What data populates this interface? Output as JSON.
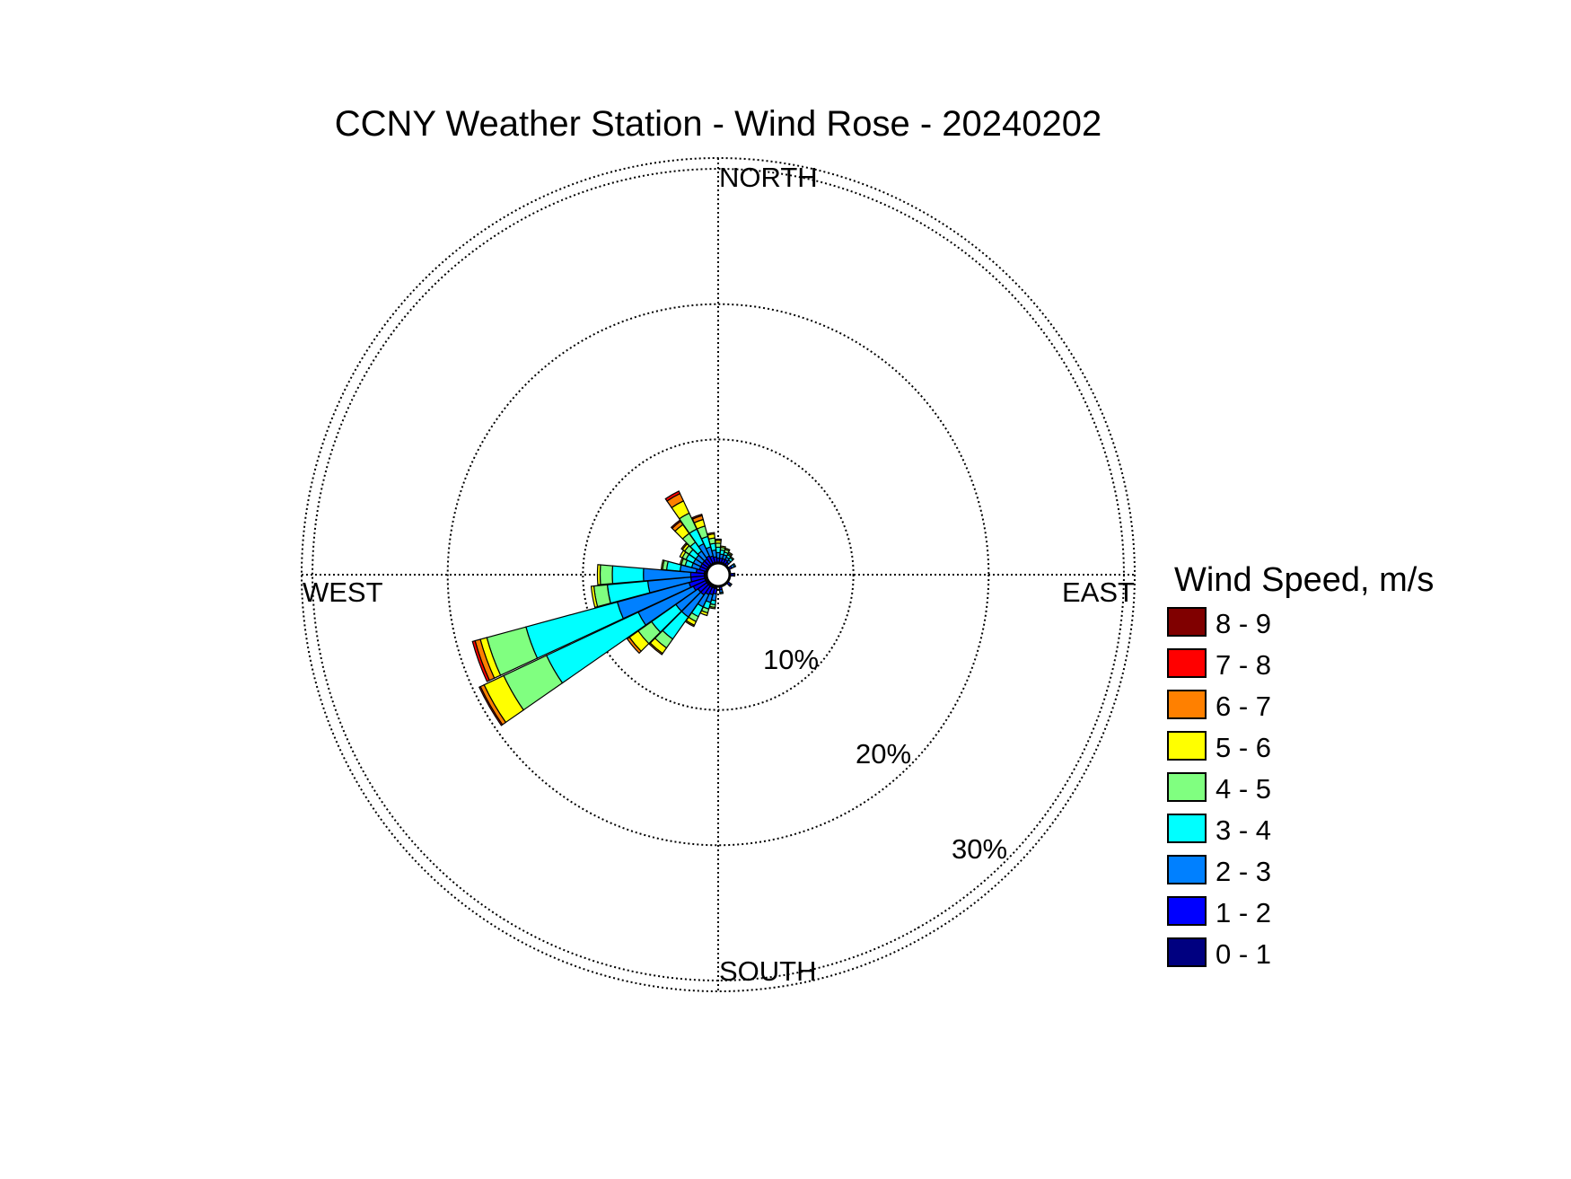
{
  "chart_data": {
    "type": "wind_rose",
    "title": "CCNY Weather Station - Wind Rose - 20240202",
    "direction_labels": {
      "north": "NORTH",
      "east": "EAST",
      "south": "SOUTH",
      "west": "WEST"
    },
    "rings": [
      {
        "value": 10,
        "label": "10%"
      },
      {
        "value": 20,
        "label": "20%"
      },
      {
        "value": 30,
        "label": "30%"
      }
    ],
    "r_max_percent": 30.8,
    "grid": true,
    "legend": {
      "title": "Wind Speed, m/s",
      "placement": "right",
      "items": [
        {
          "label": "8 - 9",
          "color": "#800000"
        },
        {
          "label": "7 - 8",
          "color": "#ff0000"
        },
        {
          "label": "6 - 7",
          "color": "#ff8000"
        },
        {
          "label": "5 - 6",
          "color": "#ffff00"
        },
        {
          "label": "4 - 5",
          "color": "#80ff80"
        },
        {
          "label": "3 - 4",
          "color": "#00ffff"
        },
        {
          "label": "2 - 3",
          "color": "#0080ff"
        },
        {
          "label": "1 - 2",
          "color": "#0000ff"
        },
        {
          "label": "0 - 1",
          "color": "#000080"
        }
      ]
    },
    "speed_bins": [
      "0 - 1",
      "1 - 2",
      "2 - 3",
      "3 - 4",
      "4 - 5",
      "5 - 6",
      "6 - 7",
      "7 - 8",
      "8 - 9"
    ],
    "bin_colors": [
      "#000080",
      "#0000ff",
      "#0080ff",
      "#00ffff",
      "#80ff80",
      "#ffff00",
      "#ff8000",
      "#ff0000",
      "#800000"
    ],
    "sectors_note": "direction in degrees (from), cumulative frequency in percent per speed bin (0-1 first)",
    "sectors": [
      {
        "dir": 0,
        "values": [
          0.2,
          0.3,
          0.4,
          0.4,
          0.3,
          0.2,
          0.1,
          0.0,
          0.0
        ]
      },
      {
        "dir": 10,
        "values": [
          0.2,
          0.3,
          0.3,
          0.3,
          0.2,
          0.1,
          0.0,
          0.0,
          0.0
        ]
      },
      {
        "dir": 20,
        "values": [
          0.2,
          0.3,
          0.3,
          0.2,
          0.2,
          0.1,
          0.0,
          0.0,
          0.0
        ]
      },
      {
        "dir": 30,
        "values": [
          0.2,
          0.3,
          0.2,
          0.2,
          0.1,
          0.1,
          0.0,
          0.0,
          0.0
        ]
      },
      {
        "dir": 40,
        "values": [
          0.2,
          0.2,
          0.2,
          0.2,
          0.1,
          0.0,
          0.0,
          0.0,
          0.0
        ]
      },
      {
        "dir": 60,
        "values": [
          0.2,
          0.2,
          0.2,
          0.1,
          0.0,
          0.0,
          0.0,
          0.0,
          0.0
        ]
      },
      {
        "dir": 90,
        "values": [
          0.2,
          0.2,
          0.1,
          0.0,
          0.0,
          0.0,
          0.0,
          0.0,
          0.0
        ]
      },
      {
        "dir": 130,
        "values": [
          0.2,
          0.2,
          0.1,
          0.0,
          0.0,
          0.0,
          0.0,
          0.0,
          0.0
        ]
      },
      {
        "dir": 170,
        "values": [
          0.2,
          0.2,
          0.2,
          0.1,
          0.0,
          0.0,
          0.0,
          0.0,
          0.0
        ]
      },
      {
        "dir": 190,
        "values": [
          0.3,
          0.4,
          0.5,
          0.3,
          0.2,
          0.1,
          0.0,
          0.0,
          0.0
        ]
      },
      {
        "dir": 200,
        "values": [
          0.3,
          0.5,
          0.6,
          0.5,
          0.3,
          0.2,
          0.0,
          0.0,
          0.0
        ]
      },
      {
        "dir": 210,
        "values": [
          0.3,
          0.6,
          1.0,
          0.8,
          0.4,
          0.3,
          0.1,
          0.0,
          0.0
        ]
      },
      {
        "dir": 220,
        "values": [
          0.3,
          0.8,
          2.0,
          2.0,
          0.8,
          0.5,
          0.1,
          0.0,
          0.0
        ]
      },
      {
        "dir": 230,
        "values": [
          0.3,
          0.8,
          2.0,
          2.2,
          1.2,
          0.8,
          0.2,
          0.0,
          0.0
        ]
      },
      {
        "dir": 240,
        "values": [
          0.3,
          1.0,
          4.5,
          7.5,
          3.5,
          1.6,
          0.3,
          0.1,
          0.0
        ]
      },
      {
        "dir": 250,
        "values": [
          0.3,
          1.2,
          5.5,
          7.0,
          3.0,
          0.5,
          0.4,
          0.2,
          0.0
        ]
      },
      {
        "dir": 260,
        "values": [
          0.3,
          1.0,
          3.2,
          3.0,
          1.0,
          0.2,
          0.0,
          0.0,
          0.0
        ]
      },
      {
        "dir": 270,
        "values": [
          0.3,
          1.0,
          3.5,
          2.3,
          0.9,
          0.2,
          0.0,
          0.0,
          0.0
        ]
      },
      {
        "dir": 280,
        "values": [
          0.3,
          0.6,
          1.2,
          1.0,
          0.3,
          0.1,
          0.0,
          0.0,
          0.0
        ]
      },
      {
        "dir": 290,
        "values": [
          0.2,
          0.5,
          0.6,
          0.5,
          0.3,
          0.1,
          0.0,
          0.0,
          0.0
        ]
      },
      {
        "dir": 300,
        "values": [
          0.2,
          0.5,
          0.6,
          0.6,
          0.3,
          0.2,
          0.0,
          0.0,
          0.0
        ]
      },
      {
        "dir": 310,
        "values": [
          0.2,
          0.5,
          0.6,
          0.6,
          0.4,
          0.2,
          0.1,
          0.0,
          0.0
        ]
      },
      {
        "dir": 320,
        "values": [
          0.2,
          0.5,
          0.7,
          0.8,
          0.8,
          0.8,
          0.3,
          0.1,
          0.0
        ]
      },
      {
        "dir": 330,
        "values": [
          0.2,
          0.6,
          1.0,
          1.2,
          1.3,
          1.0,
          0.6,
          0.2,
          0.0
        ]
      },
      {
        "dir": 340,
        "values": [
          0.2,
          0.5,
          0.7,
          0.8,
          0.8,
          0.5,
          0.3,
          0.1,
          0.0
        ]
      },
      {
        "dir": 350,
        "values": [
          0.2,
          0.4,
          0.5,
          0.5,
          0.4,
          0.3,
          0.1,
          0.0,
          0.0
        ]
      }
    ]
  }
}
